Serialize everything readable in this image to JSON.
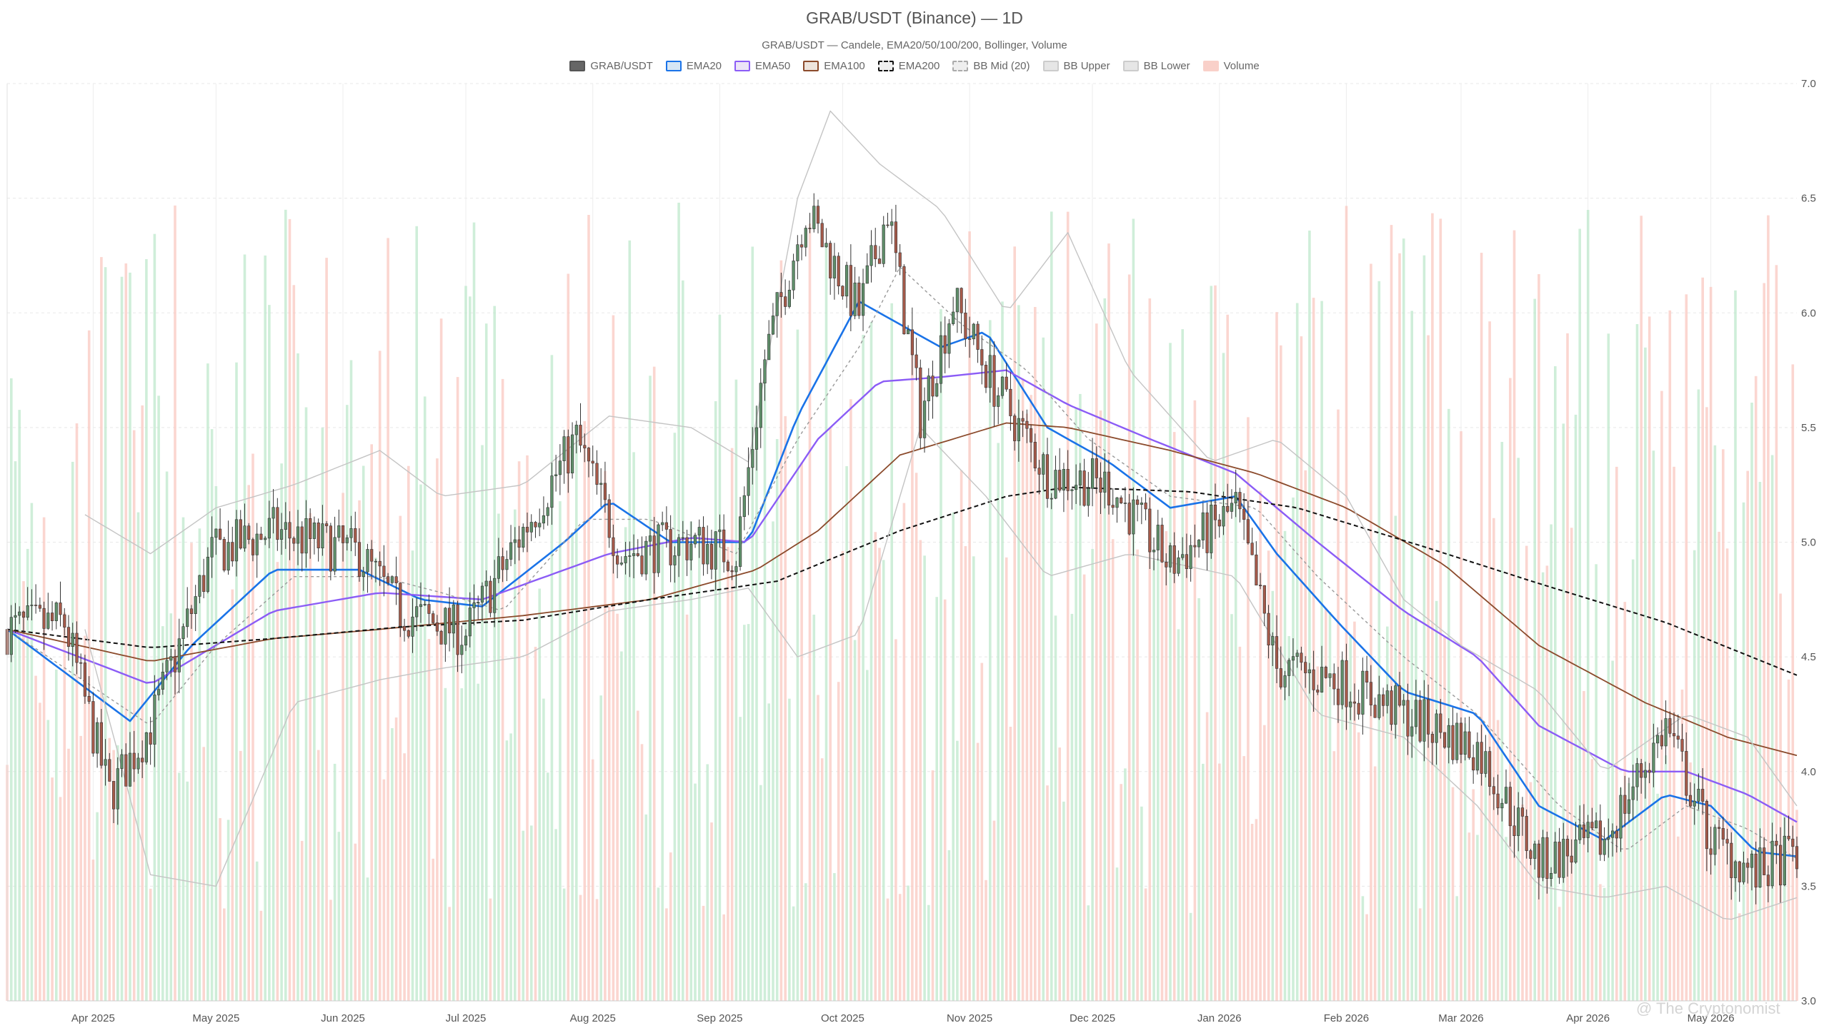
{
  "chart_data": {
    "type": "candlestick",
    "title": "GRAB/USDT (Binance) — 1D",
    "subtitle": "GRAB/USDT — Candele, EMA20/50/100/200, Bollinger, Volume",
    "legend": [
      {
        "name": "GRAB/USDT",
        "fill": "#666666",
        "stroke": "#555555",
        "dash": false
      },
      {
        "name": "EMA20",
        "fill": "#d6e6f5",
        "stroke": "#1a73e8",
        "dash": false
      },
      {
        "name": "EMA50",
        "fill": "#ece4f7",
        "stroke": "#8b5cf6",
        "dash": false
      },
      {
        "name": "EMA100",
        "fill": "#eee4dc",
        "stroke": "#8b4a2b",
        "dash": false
      },
      {
        "name": "EMA200",
        "fill": "#eeeeee",
        "stroke": "#111111",
        "dash": true
      },
      {
        "name": "BB Mid (20)",
        "fill": "#eeeeee",
        "stroke": "#aaaaaa",
        "dash": true
      },
      {
        "name": "BB Upper",
        "fill": "#e6e6e6",
        "stroke": "#cccccc",
        "dash": false
      },
      {
        "name": "BB Lower",
        "fill": "#e6e6e6",
        "stroke": "#cccccc",
        "dash": false
      },
      {
        "name": "Volume",
        "fill": "#f9d0c9",
        "stroke": "#f9d0c9",
        "dash": false
      }
    ],
    "x_ticks": [
      "Apr 2025",
      "May 2025",
      "Jun 2025",
      "Jul 2025",
      "Aug 2025",
      "Sep 2025",
      "Oct 2025",
      "Nov 2025",
      "Dec 2025",
      "Jan 2026",
      "Feb 2026",
      "Mar 2026",
      "Apr 2026",
      "May 2026"
    ],
    "x_range": [
      "2025-03-11",
      "2026-05-22"
    ],
    "y_range": [
      3.0,
      7.0
    ],
    "y_ticks": [
      "7.0",
      "6.5",
      "6.0",
      "5.5",
      "5.0",
      "4.5",
      "4.0",
      "3.5",
      "3.0"
    ],
    "y_axis_position": "right",
    "grid": true,
    "colors": {
      "up": "#5f8f6a",
      "down": "#a65a4a",
      "vol_up": "#bfe8cc",
      "vol_down": "#f9c8c0"
    },
    "series": [
      {
        "name": "close",
        "points": [
          [
            "2025-03-11",
            4.62
          ],
          [
            "2025-03-25",
            4.65
          ],
          [
            "2025-04-05",
            3.9
          ],
          [
            "2025-04-15",
            4.2
          ],
          [
            "2025-04-30",
            4.95
          ],
          [
            "2025-05-15",
            5.05
          ],
          [
            "2025-06-05",
            4.95
          ],
          [
            "2025-06-15",
            4.7
          ],
          [
            "2025-07-01",
            4.6
          ],
          [
            "2025-07-15",
            5.05
          ],
          [
            "2025-07-28",
            5.45
          ],
          [
            "2025-08-08",
            4.95
          ],
          [
            "2025-08-25",
            5.0
          ],
          [
            "2025-09-05",
            4.95
          ],
          [
            "2025-09-12",
            5.8
          ],
          [
            "2025-09-22",
            6.45
          ],
          [
            "2025-10-05",
            6.0
          ],
          [
            "2025-10-12",
            6.45
          ],
          [
            "2025-10-20",
            5.55
          ],
          [
            "2025-10-28",
            6.05
          ],
          [
            "2025-11-08",
            5.65
          ],
          [
            "2025-11-20",
            5.3
          ],
          [
            "2025-12-05",
            5.25
          ],
          [
            "2025-12-20",
            4.9
          ],
          [
            "2026-01-05",
            5.15
          ],
          [
            "2026-01-15",
            4.45
          ],
          [
            "2026-01-30",
            4.4
          ],
          [
            "2026-02-15",
            4.25
          ],
          [
            "2026-03-05",
            4.1
          ],
          [
            "2026-03-20",
            3.6
          ],
          [
            "2026-04-05",
            3.7
          ],
          [
            "2026-04-20",
            4.2
          ],
          [
            "2026-05-01",
            3.7
          ],
          [
            "2026-05-12",
            3.55
          ],
          [
            "2026-05-22",
            3.65
          ]
        ]
      },
      {
        "name": "EMA20",
        "points": [
          [
            "2025-03-11",
            4.62
          ],
          [
            "2025-04-10",
            4.22
          ],
          [
            "2025-04-25",
            4.55
          ],
          [
            "2025-05-15",
            4.88
          ],
          [
            "2025-06-05",
            4.88
          ],
          [
            "2025-06-20",
            4.75
          ],
          [
            "2025-07-05",
            4.72
          ],
          [
            "2025-07-25",
            5.0
          ],
          [
            "2025-08-05",
            5.18
          ],
          [
            "2025-08-20",
            5.0
          ],
          [
            "2025-09-08",
            5.0
          ],
          [
            "2025-09-20",
            5.55
          ],
          [
            "2025-10-05",
            6.05
          ],
          [
            "2025-10-15",
            5.95
          ],
          [
            "2025-10-25",
            5.85
          ],
          [
            "2025-11-05",
            5.92
          ],
          [
            "2025-11-20",
            5.5
          ],
          [
            "2025-12-05",
            5.35
          ],
          [
            "2025-12-20",
            5.15
          ],
          [
            "2026-01-05",
            5.2
          ],
          [
            "2026-01-15",
            4.95
          ],
          [
            "2026-01-30",
            4.65
          ],
          [
            "2026-02-15",
            4.35
          ],
          [
            "2026-03-05",
            4.25
          ],
          [
            "2026-03-20",
            3.85
          ],
          [
            "2026-04-05",
            3.7
          ],
          [
            "2026-04-20",
            3.9
          ],
          [
            "2026-05-01",
            3.85
          ],
          [
            "2026-05-12",
            3.65
          ],
          [
            "2026-05-22",
            3.63
          ]
        ]
      },
      {
        "name": "EMA50",
        "points": [
          [
            "2025-03-11",
            4.62
          ],
          [
            "2025-04-15",
            4.38
          ],
          [
            "2025-05-15",
            4.7
          ],
          [
            "2025-06-10",
            4.78
          ],
          [
            "2025-07-05",
            4.75
          ],
          [
            "2025-08-05",
            4.95
          ],
          [
            "2025-08-25",
            5.02
          ],
          [
            "2025-09-08",
            5.0
          ],
          [
            "2025-09-25",
            5.45
          ],
          [
            "2025-10-10",
            5.7
          ],
          [
            "2025-10-25",
            5.72
          ],
          [
            "2025-11-10",
            5.75
          ],
          [
            "2025-11-25",
            5.6
          ],
          [
            "2025-12-15",
            5.45
          ],
          [
            "2026-01-05",
            5.3
          ],
          [
            "2026-01-25",
            5.0
          ],
          [
            "2026-02-15",
            4.7
          ],
          [
            "2026-03-05",
            4.5
          ],
          [
            "2026-03-20",
            4.2
          ],
          [
            "2026-04-10",
            4.0
          ],
          [
            "2026-04-25",
            4.0
          ],
          [
            "2026-05-10",
            3.9
          ],
          [
            "2026-05-22",
            3.78
          ]
        ]
      },
      {
        "name": "EMA100",
        "points": [
          [
            "2025-03-11",
            4.62
          ],
          [
            "2025-04-15",
            4.48
          ],
          [
            "2025-05-15",
            4.58
          ],
          [
            "2025-06-10",
            4.62
          ],
          [
            "2025-07-15",
            4.68
          ],
          [
            "2025-08-15",
            4.75
          ],
          [
            "2025-09-10",
            4.88
          ],
          [
            "2025-09-25",
            5.05
          ],
          [
            "2025-10-15",
            5.38
          ],
          [
            "2025-11-10",
            5.52
          ],
          [
            "2025-11-25",
            5.5
          ],
          [
            "2025-12-20",
            5.4
          ],
          [
            "2026-01-10",
            5.3
          ],
          [
            "2026-02-01",
            5.15
          ],
          [
            "2026-02-25",
            4.9
          ],
          [
            "2026-03-20",
            4.55
          ],
          [
            "2026-04-15",
            4.3
          ],
          [
            "2026-05-05",
            4.15
          ],
          [
            "2026-05-22",
            4.07
          ]
        ]
      },
      {
        "name": "EMA200",
        "points": [
          [
            "2025-03-11",
            4.62
          ],
          [
            "2025-04-15",
            4.54
          ],
          [
            "2025-05-15",
            4.58
          ],
          [
            "2025-06-15",
            4.63
          ],
          [
            "2025-07-15",
            4.66
          ],
          [
            "2025-08-15",
            4.75
          ],
          [
            "2025-09-15",
            4.83
          ],
          [
            "2025-10-15",
            5.05
          ],
          [
            "2025-11-10",
            5.2
          ],
          [
            "2025-11-25",
            5.24
          ],
          [
            "2025-12-25",
            5.22
          ],
          [
            "2026-01-20",
            5.15
          ],
          [
            "2026-02-20",
            4.98
          ],
          [
            "2026-03-20",
            4.82
          ],
          [
            "2026-04-20",
            4.65
          ],
          [
            "2026-05-22",
            4.42
          ]
        ]
      },
      {
        "name": "BB Mid (20)",
        "points": [
          [
            "2025-03-11",
            4.62
          ],
          [
            "2025-04-15",
            4.2
          ],
          [
            "2025-05-01",
            4.55
          ],
          [
            "2025-05-20",
            4.85
          ],
          [
            "2025-06-10",
            4.85
          ],
          [
            "2025-06-25",
            4.78
          ],
          [
            "2025-07-10",
            4.7
          ],
          [
            "2025-07-30",
            5.1
          ],
          [
            "2025-08-15",
            5.1
          ],
          [
            "2025-09-05",
            4.95
          ],
          [
            "2025-09-20",
            5.45
          ],
          [
            "2025-10-05",
            5.85
          ],
          [
            "2025-10-15",
            6.2
          ],
          [
            "2025-10-30",
            5.95
          ],
          [
            "2025-11-15",
            5.75
          ],
          [
            "2025-11-30",
            5.45
          ],
          [
            "2025-12-20",
            5.2
          ],
          [
            "2026-01-10",
            5.15
          ],
          [
            "2026-01-25",
            4.85
          ],
          [
            "2026-02-15",
            4.5
          ],
          [
            "2026-03-05",
            4.25
          ],
          [
            "2026-03-25",
            3.85
          ],
          [
            "2026-04-10",
            3.65
          ],
          [
            "2026-04-25",
            3.85
          ],
          [
            "2026-05-10",
            3.75
          ],
          [
            "2026-05-22",
            3.62
          ]
        ]
      },
      {
        "name": "BB Upper",
        "points": [
          [
            "2025-03-30",
            5.12
          ],
          [
            "2025-04-15",
            4.95
          ],
          [
            "2025-05-01",
            5.15
          ],
          [
            "2025-05-20",
            5.25
          ],
          [
            "2025-06-10",
            5.4
          ],
          [
            "2025-06-25",
            5.2
          ],
          [
            "2025-07-15",
            5.25
          ],
          [
            "2025-08-05",
            5.55
          ],
          [
            "2025-08-25",
            5.5
          ],
          [
            "2025-09-08",
            5.35
          ],
          [
            "2025-09-20",
            6.5
          ],
          [
            "2025-09-28",
            6.88
          ],
          [
            "2025-10-10",
            6.65
          ],
          [
            "2025-10-25",
            6.45
          ],
          [
            "2025-11-10",
            6.0
          ],
          [
            "2025-11-25",
            6.35
          ],
          [
            "2025-12-10",
            5.75
          ],
          [
            "2025-12-30",
            5.35
          ],
          [
            "2026-01-15",
            5.45
          ],
          [
            "2026-02-01",
            5.2
          ],
          [
            "2026-02-15",
            4.75
          ],
          [
            "2026-03-01",
            4.55
          ],
          [
            "2026-03-20",
            4.35
          ],
          [
            "2026-04-05",
            4.0
          ],
          [
            "2026-04-25",
            4.25
          ],
          [
            "2026-05-10",
            4.15
          ],
          [
            "2026-05-22",
            3.85
          ]
        ]
      },
      {
        "name": "BB Lower",
        "points": [
          [
            "2025-03-30",
            4.62
          ],
          [
            "2025-04-15",
            3.55
          ],
          [
            "2025-05-01",
            3.5
          ],
          [
            "2025-05-20",
            4.3
          ],
          [
            "2025-06-10",
            4.4
          ],
          [
            "2025-06-25",
            4.45
          ],
          [
            "2025-07-15",
            4.5
          ],
          [
            "2025-08-05",
            4.7
          ],
          [
            "2025-08-25",
            4.75
          ],
          [
            "2025-09-08",
            4.8
          ],
          [
            "2025-09-20",
            4.5
          ],
          [
            "2025-10-05",
            4.6
          ],
          [
            "2025-10-20",
            5.5
          ],
          [
            "2025-11-05",
            5.2
          ],
          [
            "2025-11-20",
            4.85
          ],
          [
            "2025-12-10",
            4.95
          ],
          [
            "2026-01-05",
            4.85
          ],
          [
            "2026-01-25",
            4.25
          ],
          [
            "2026-02-15",
            4.15
          ],
          [
            "2026-03-05",
            3.85
          ],
          [
            "2026-03-20",
            3.5
          ],
          [
            "2026-04-05",
            3.45
          ],
          [
            "2026-04-20",
            3.5
          ],
          [
            "2026-05-05",
            3.35
          ],
          [
            "2026-05-22",
            3.45
          ]
        ]
      }
    ]
  },
  "watermark": "@ The Cryptonomist"
}
